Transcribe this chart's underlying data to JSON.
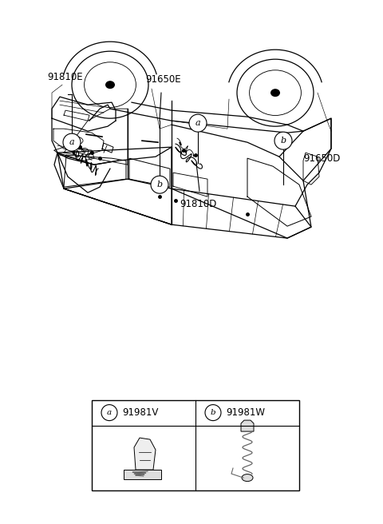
{
  "bg_color": "#ffffff",
  "lc": "#000000",
  "gray": "#999999",
  "lgray": "#cccccc",
  "label_91650E": "91650E",
  "label_91810E": "91810E",
  "label_91650D": "91650D",
  "label_91810D": "91810D",
  "label_91981V": "91981V",
  "label_91981W": "91981W",
  "font_size": 8.5,
  "font_size_small": 7.5
}
